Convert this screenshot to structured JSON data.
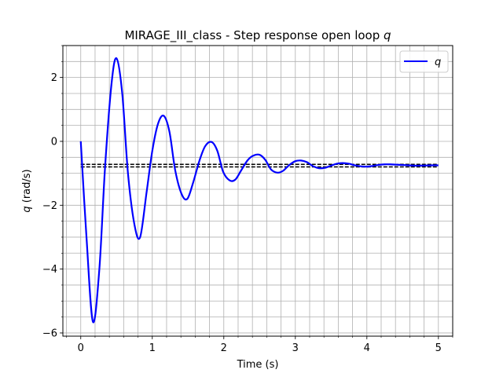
{
  "chart_data": {
    "type": "line",
    "title": "MIRAGE_III_class - Step response open loop ",
    "title_italic": "q",
    "xlabel": "Time (s)",
    "ylabel_italic": "q",
    "ylabel": " (rad/s)",
    "xlim": [
      -0.25,
      5.2
    ],
    "ylim": [
      -6.1,
      3.0
    ],
    "x_ticks": [
      0,
      1,
      2,
      3,
      4,
      5
    ],
    "x_tick_labels": [
      "0",
      "1",
      "2",
      "3",
      "4",
      "5"
    ],
    "y_ticks": [
      -6,
      -4,
      -2,
      0,
      2
    ],
    "y_tick_labels": [
      "−6",
      "−4",
      "−2",
      "0",
      "2"
    ],
    "x_minor_step": 0.2,
    "y_minor_step": 0.5,
    "grid": true,
    "legend": {
      "position": "top-right",
      "entries": [
        {
          "name": "q",
          "color": "#0000ff"
        }
      ]
    },
    "series": [
      {
        "name": "q",
        "color": "#0000ff",
        "x": [
          0,
          0.08,
          0.17,
          0.26,
          0.34,
          0.43,
          0.5,
          0.58,
          0.66,
          0.75,
          0.83,
          0.92,
          1.0,
          1.08,
          1.16,
          1.24,
          1.32,
          1.41,
          1.49,
          1.57,
          1.66,
          1.74,
          1.83,
          1.91,
          1.99,
          2.08,
          2.16,
          2.24,
          2.33,
          2.41,
          2.5,
          2.58,
          2.66,
          2.75,
          2.83,
          2.91,
          3.0,
          3.08,
          3.16,
          3.25,
          3.33,
          3.41,
          3.5,
          3.58,
          3.66,
          3.75,
          3.83,
          3.91,
          4.0,
          4.08,
          4.16,
          4.25,
          4.33,
          4.41,
          4.5,
          4.58,
          4.66,
          4.75,
          4.83,
          4.91,
          5.0
        ],
        "y": [
          0.0,
          -3.0,
          -5.65,
          -4.0,
          -0.8,
          1.8,
          2.6,
          1.5,
          -1.0,
          -2.6,
          -3.0,
          -1.6,
          -0.3,
          0.55,
          0.8,
          0.3,
          -0.9,
          -1.65,
          -1.8,
          -1.3,
          -0.6,
          -0.15,
          -0.02,
          -0.3,
          -0.95,
          -1.22,
          -1.2,
          -0.92,
          -0.6,
          -0.45,
          -0.42,
          -0.58,
          -0.88,
          -0.98,
          -0.92,
          -0.75,
          -0.62,
          -0.6,
          -0.65,
          -0.78,
          -0.84,
          -0.83,
          -0.76,
          -0.7,
          -0.68,
          -0.7,
          -0.75,
          -0.78,
          -0.79,
          -0.77,
          -0.74,
          -0.72,
          -0.72,
          -0.73,
          -0.74,
          -0.75,
          -0.76,
          -0.76,
          -0.755,
          -0.75,
          -0.75
        ]
      }
    ],
    "reference_lines": [
      {
        "y": -0.72,
        "x_range": [
          0,
          5
        ],
        "color": "#000000",
        "style": "dashed"
      },
      {
        "y": -0.8,
        "x_range": [
          0,
          5
        ],
        "color": "#000000",
        "style": "dashed"
      }
    ]
  }
}
